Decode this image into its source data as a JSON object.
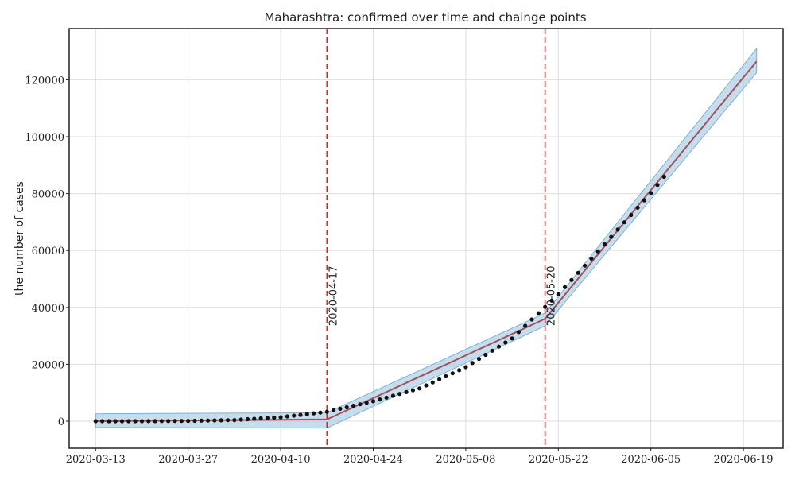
{
  "chart_data": {
    "type": "line",
    "title": "Maharashtra: confirmed over time and chainge points",
    "xlabel": "",
    "ylabel": "the number of cases",
    "x_start": "2020-03-13",
    "x_end": "2020-06-21",
    "xlim": [
      "2020-03-09",
      "2020-06-25"
    ],
    "ylim": [
      -9500,
      138000
    ],
    "x_ticks": [
      "2020-03-13",
      "2020-03-27",
      "2020-04-10",
      "2020-04-24",
      "2020-05-08",
      "2020-05-22",
      "2020-06-05",
      "2020-06-19"
    ],
    "y_ticks": [
      0,
      20000,
      40000,
      60000,
      80000,
      100000,
      120000
    ],
    "grid": true,
    "colors": {
      "observed": "#111111",
      "fit_line": "#a0525a",
      "band": "#a8cbe3",
      "change_point": "#d62728"
    },
    "series": [
      {
        "kind": "scatter",
        "points": [
          [
            "2020-03-13",
            0
          ],
          [
            "2020-03-20",
            0
          ],
          [
            "2020-03-27",
            100
          ],
          [
            "2020-04-03",
            400
          ],
          [
            "2020-04-10",
            1400
          ],
          [
            "2020-04-17",
            3300
          ],
          [
            "2020-04-24",
            7000
          ],
          [
            "2020-05-01",
            11500
          ],
          [
            "2020-05-08",
            19000
          ],
          [
            "2020-05-15",
            29100
          ],
          [
            "2020-05-22",
            44600
          ],
          [
            "2020-05-29",
            62200
          ],
          [
            "2020-06-05",
            80200
          ],
          [
            "2020-06-07",
            85900
          ]
        ]
      },
      {
        "kind": "line",
        "points": [
          [
            "2020-03-13",
            0
          ],
          [
            "2020-04-17",
            600
          ],
          [
            "2020-05-20",
            36000
          ],
          [
            "2020-06-21",
            126500
          ]
        ]
      },
      {
        "kind": "band",
        "upper": [
          [
            "2020-03-13",
            2600
          ],
          [
            "2020-04-17",
            3000
          ],
          [
            "2020-05-20",
            38000
          ],
          [
            "2020-06-21",
            131000
          ]
        ],
        "lower": [
          [
            "2020-03-13",
            -2200
          ],
          [
            "2020-04-17",
            -2400
          ],
          [
            "2020-05-20",
            33500
          ],
          [
            "2020-06-21",
            122500
          ]
        ]
      }
    ],
    "change_points": [
      {
        "date": "2020-04-17",
        "label": "2020-04-17"
      },
      {
        "date": "2020-05-20",
        "label": "2020-05-20"
      }
    ]
  }
}
